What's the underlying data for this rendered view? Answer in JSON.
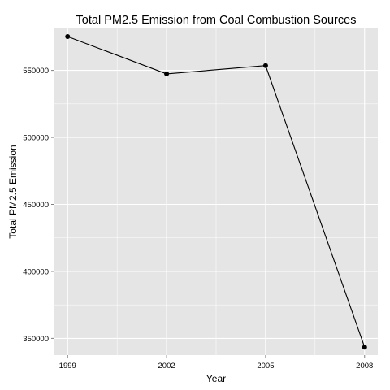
{
  "chart_data": {
    "type": "line",
    "title": "Total PM2.5 Emission from Coal Combustion Sources",
    "xlabel": "Year",
    "ylabel": "Total PM2.5 Emission",
    "x": [
      1999,
      2002,
      2005,
      2008
    ],
    "series": [
      {
        "values": [
          575207,
          547381,
          553549,
          343432
        ]
      }
    ],
    "x_ticks": [
      "1999",
      "2002",
      "2005",
      "2008"
    ],
    "y_ticks": [
      {
        "value": 350000,
        "label": "350000"
      },
      {
        "value": 400000,
        "label": "400000"
      },
      {
        "value": 450000,
        "label": "450000"
      },
      {
        "value": 500000,
        "label": "500000"
      },
      {
        "value": 550000,
        "label": "550000"
      }
    ],
    "xlim": [
      1998.6,
      2008.4
    ],
    "ylim": [
      337500,
      581300
    ],
    "grid": true,
    "legend": "none",
    "colors": {
      "panel": "#e5e5e5",
      "grid": "#ffffff",
      "line": "#000000",
      "point": "#000000"
    }
  }
}
